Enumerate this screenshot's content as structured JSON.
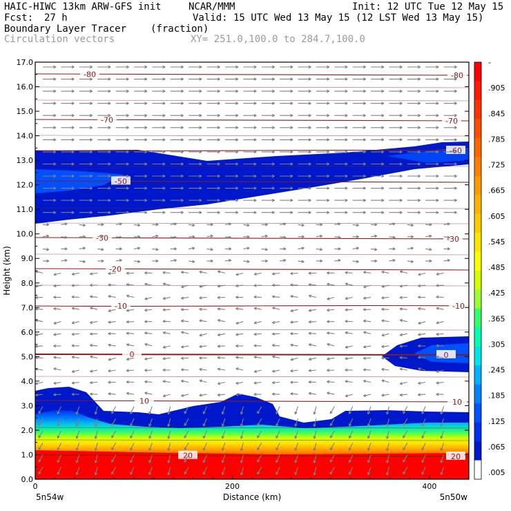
{
  "header": {
    "model": "HAIC-HIWC 13km ARW-GFS init",
    "org": "NCAR/MMM",
    "init": "Init: 12 UTC Tue 12 May 15",
    "fcst_label": "Fcst:",
    "fcst_value": "27 h",
    "valid": "Valid: 15 UTC Wed 13 May 15 (12 LST Wed 13 May 15)",
    "field": "Boundary Layer Tracer",
    "units": "(fraction)",
    "vectors": "Circulation vectors",
    "xy": "XY= 251.0,100.0 to 284.7,100.0"
  },
  "chart_data": {
    "type": "contour",
    "title": "Boundary Layer Tracer",
    "units": "(fraction)",
    "xlabel": "Distance (km)",
    "ylabel": "Height (km)",
    "xlim": [
      0,
      440
    ],
    "ylim": [
      0,
      17
    ],
    "x_ticks": [
      0,
      200,
      400
    ],
    "y_ticks": [
      "0.0",
      "1.0",
      "2.0",
      "3.0",
      "4.0",
      "5.0",
      "6.0",
      "7.0",
      "8.0",
      "9.0",
      "10.0",
      "11.0",
      "12.0",
      "13.0",
      "14.0",
      "15.0",
      "16.0",
      "17.0"
    ],
    "left_endpoint_label": "5n54w",
    "right_endpoint_label": "5n50w",
    "colorbar": {
      "labels": [
        "-",
        ".905",
        ".845",
        ".785",
        ".725",
        ".665",
        ".605",
        ".545",
        ".485",
        ".425",
        ".365",
        ".305",
        ".245",
        ".185",
        ".125",
        ".065",
        ".005"
      ],
      "colors": [
        "#ff0000",
        "#ff1a00",
        "#ff3300",
        "#ff4d00",
        "#ff6600",
        "#ff8000",
        "#ff9900",
        "#ffb300",
        "#ffcc00",
        "#ffe600",
        "#ffff00",
        "#d4ff00",
        "#99ff33",
        "#33ff66",
        "#00ffb3",
        "#00e6e6",
        "#00b3ff",
        "#0080ff",
        "#0050ff",
        "#0030ee",
        "#0018cc",
        "#ffffff"
      ]
    },
    "temperature_contours": [
      {
        "value": -80,
        "label": "-80"
      },
      {
        "value": -70,
        "label": "-70"
      },
      {
        "value": -60,
        "label": "-60"
      },
      {
        "value": -50,
        "label": "-50"
      },
      {
        "value": -30,
        "label": "-30"
      },
      {
        "value": -20,
        "label": "-20"
      },
      {
        "value": -10,
        "label": "-10"
      },
      {
        "value": 0,
        "label": "0"
      },
      {
        "value": 10,
        "label": "10"
      },
      {
        "value": 20,
        "label": "20"
      }
    ]
  }
}
